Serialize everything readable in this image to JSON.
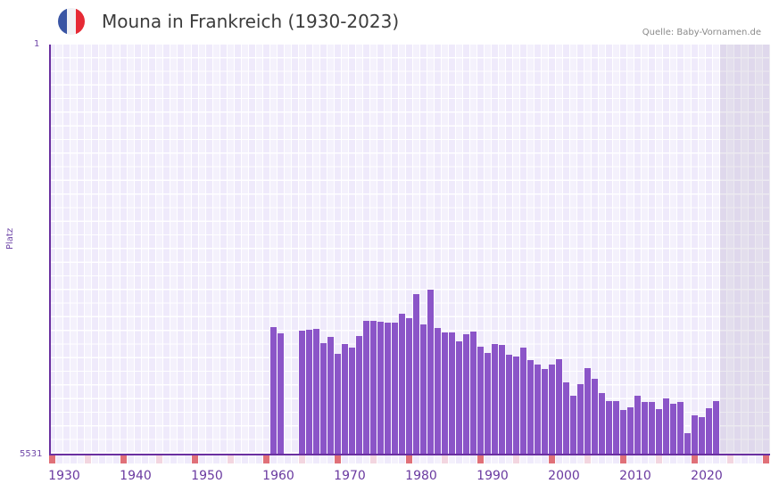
{
  "header": {
    "title": "Mouna in Frankreich (1930-2023)",
    "source": "Quelle: Baby-Vornamen.de",
    "flag": {
      "country": "France",
      "colors": [
        "#3a55a4",
        "#f2f2f5",
        "#e62a35"
      ]
    }
  },
  "colors": {
    "bar": "#8b55c8",
    "axis": "#6a2fa0",
    "grid_bg_a": "#efeafb",
    "grid_bg_b": "#f4f1fc",
    "grid_line": "#ffffff",
    "future_bg": "#e4e0ee",
    "decade_marker": "#e07078",
    "half_decade_marker": "#f3d6e0"
  },
  "chart_data": {
    "type": "bar",
    "title": "Mouna in Frankreich (1930-2023)",
    "xlabel": "",
    "ylabel": "Platz",
    "y_inverted": true,
    "ylim": [
      5531,
      1
    ],
    "y_ticks": [
      "1",
      "5531"
    ],
    "x_ticks": [
      "1930",
      "1940",
      "1950",
      "1960",
      "1970",
      "1980",
      "1990",
      "2000",
      "2010",
      "2020"
    ],
    "grid": true,
    "legend": null,
    "x_range": [
      1929,
      2029
    ],
    "future_shaded_from": 2023,
    "categories": [
      1960,
      1961,
      1964,
      1965,
      1966,
      1967,
      1968,
      1969,
      1970,
      1971,
      1972,
      1973,
      1974,
      1975,
      1976,
      1977,
      1978,
      1979,
      1980,
      1981,
      1982,
      1983,
      1984,
      1985,
      1986,
      1987,
      1988,
      1989,
      1990,
      1991,
      1992,
      1993,
      1994,
      1995,
      1996,
      1997,
      1998,
      1999,
      2000,
      2001,
      2002,
      2003,
      2004,
      2005,
      2006,
      2007,
      2008,
      2009,
      2010,
      2011,
      2012,
      2013,
      2014,
      2015,
      2016,
      2017,
      2018,
      2019,
      2020,
      2021,
      2022
    ],
    "values": [
      3812,
      3896,
      3860,
      3848,
      3836,
      4029,
      3944,
      4173,
      4041,
      4089,
      3932,
      3728,
      3728,
      3740,
      3752,
      3752,
      3632,
      3692,
      3367,
      3776,
      3307,
      3824,
      3884,
      3884,
      4005,
      3908,
      3872,
      4077,
      4161,
      4041,
      4053,
      4185,
      4209,
      4089,
      4257,
      4317,
      4377,
      4317,
      4245,
      4558,
      4738,
      4582,
      4365,
      4510,
      4702,
      4810,
      4810,
      4930,
      4894,
      4738,
      4822,
      4822,
      4918,
      4774,
      4846,
      4822,
      5243,
      5003,
      5027,
      4906,
      4810
    ]
  }
}
